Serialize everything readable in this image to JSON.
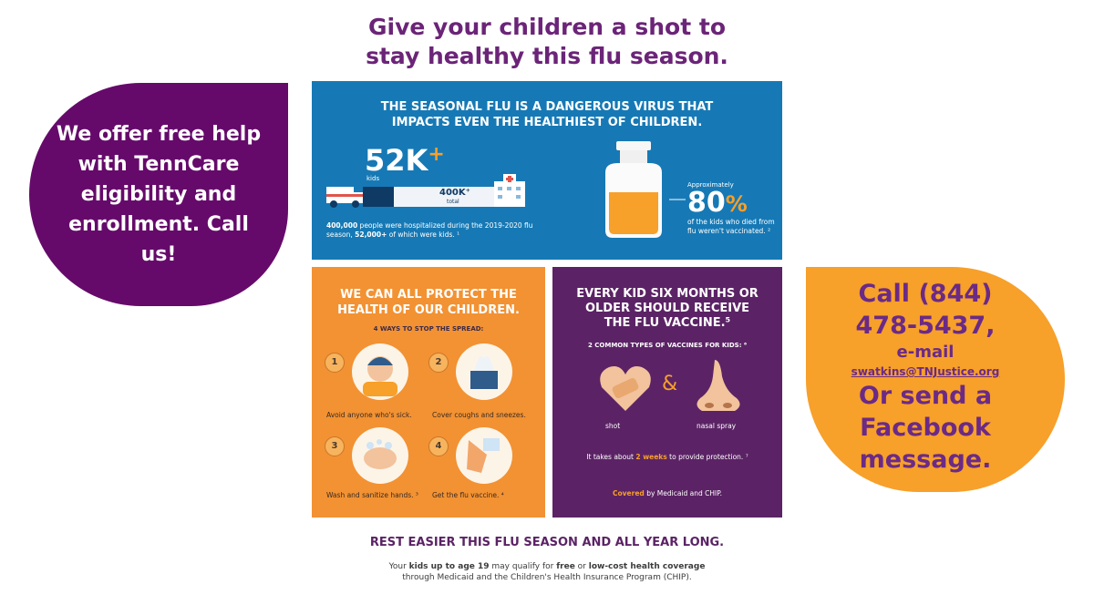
{
  "headline": {
    "line1": "Give your children a shot to",
    "line2": "stay healthy this flu season."
  },
  "left_bubble": {
    "text": "We offer free help with TennCare eligibility and enrollment. Call us!"
  },
  "right_bubble": {
    "call_line1": "Call (844)",
    "call_line2": "478-5437,",
    "email_label": "e-mail",
    "email": "swatkins@TNJustice.org",
    "send_line1": "Or send a",
    "send_line2": "Facebook",
    "send_line3": "message."
  },
  "infographic": {
    "blue": {
      "title_line1": "THE SEASONAL FLU IS A DANGEROUS VIRUS THAT",
      "title_line2": "IMPACTS EVEN THE HEALTHIEST OF CHILDREN.",
      "stat_kids": "52K",
      "stat_plus": "+",
      "kids_label": "kids",
      "stat_total": "400K⁺",
      "total_label": "total",
      "hospital_desc_bold1": "400,000",
      "hospital_desc_mid": " people were hospitalized during the 2019-2020 flu season, ",
      "hospital_desc_bold2": "52,000+",
      "hospital_desc_end": " of which were kids. ¹",
      "approx_label": "Approximately",
      "percent_value": "80",
      "percent_sign": "%",
      "died_desc": "of the kids who died from flu weren't vaccinated. ²"
    },
    "orange": {
      "title_line1": "WE CAN ALL PROTECT THE",
      "title_line2": "HEALTH OF OUR CHILDREN.",
      "subtitle": "4 WAYS TO STOP THE SPREAD:",
      "steps": [
        {
          "num": "1",
          "caption": "Avoid anyone who's sick."
        },
        {
          "num": "2",
          "caption": "Cover coughs and sneezes."
        },
        {
          "num": "3",
          "caption": "Wash and sanitize hands. ³"
        },
        {
          "num": "4",
          "caption": "Get the flu vaccine. ⁴"
        }
      ]
    },
    "purple": {
      "title_line1": "EVERY KID SIX MONTHS OR",
      "title_line2": "OLDER SHOULD RECEIVE",
      "title_line3": "THE FLU VACCINE.⁵",
      "subtitle": "2 COMMON TYPES OF VACCINES FOR KIDS: ⁶",
      "amp": "&",
      "type1": "shot",
      "type2": "nasal spray",
      "takes_pre": "It takes about ",
      "takes_bold": "2 weeks",
      "takes_post": " to provide protection. ⁷",
      "covered_bold": "Covered",
      "covered_rest": " by Medicaid and CHIP."
    },
    "rest": {
      "title": "REST EASIER THIS FLU SEASON AND ALL YEAR LONG.",
      "body_pre": "Your ",
      "body_bold1": "kids up to age 19",
      "body_mid1": " may qualify for ",
      "body_bold2": "free",
      "body_mid2": " or ",
      "body_bold3": "low-cost health coverage",
      "body_line2": "through Medicaid and the Children's Health Insurance Program (CHIP)."
    }
  },
  "colors": {
    "purple": "#650a6a",
    "orange": "#f7a02a",
    "blue": "#1679b5",
    "headline": "#6b2478"
  }
}
